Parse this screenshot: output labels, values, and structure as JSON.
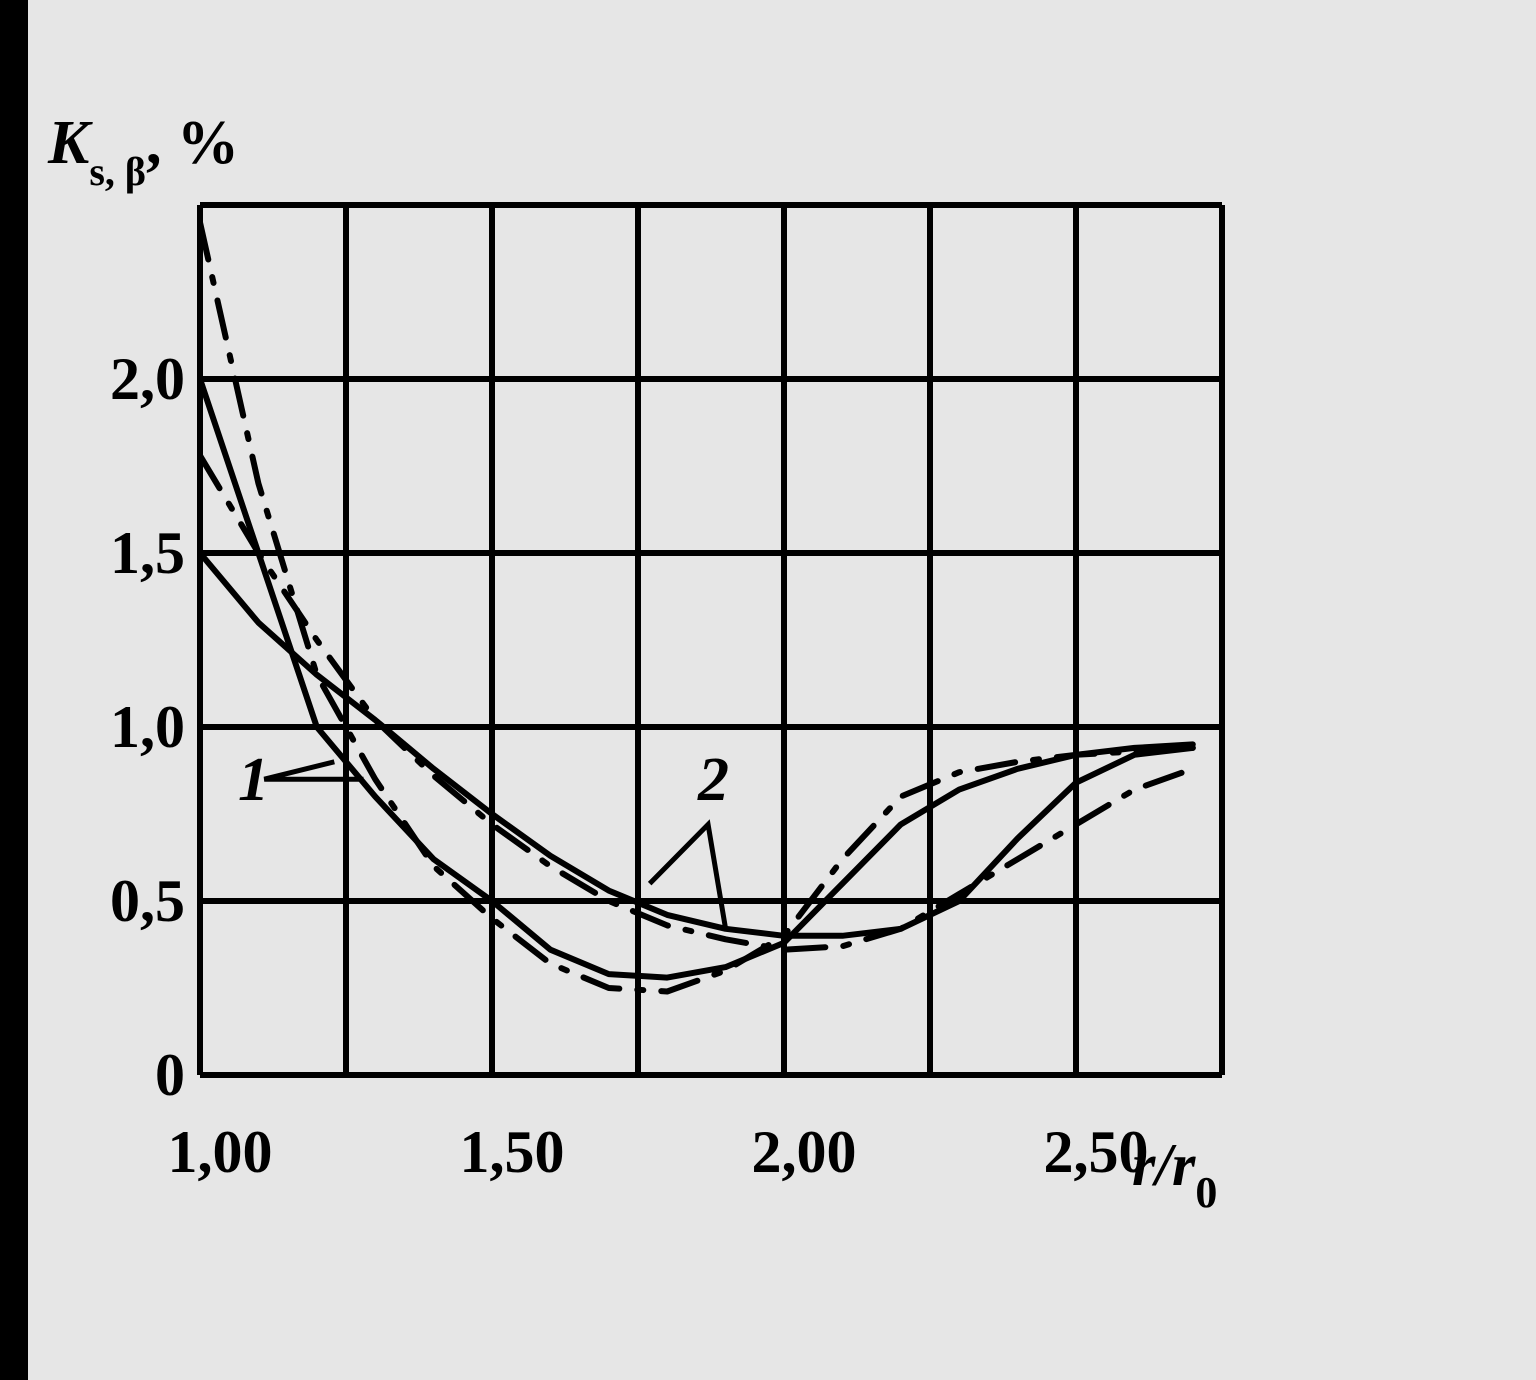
{
  "chart_data": {
    "type": "line",
    "title": "",
    "xlabel": "r/r0",
    "xlabel_main": "r/r",
    "xlabel_sub": "0",
    "ylabel": "Ks, β, %",
    "ylabel_main": "K",
    "ylabel_sub": "s, β",
    "ylabel_rest": ", %",
    "xlim": [
      1.0,
      2.75
    ],
    "ylim": [
      0,
      2.5
    ],
    "grid": true,
    "x_ticks": [
      {
        "value": 1.0,
        "label": "1,00"
      },
      {
        "value": 1.5,
        "label": "1,50"
      },
      {
        "value": 2.0,
        "label": "2,00"
      },
      {
        "value": 2.5,
        "label": "2,50"
      }
    ],
    "y_ticks": [
      {
        "value": 0,
        "label": "0"
      },
      {
        "value": 0.5,
        "label": "0,5"
      },
      {
        "value": 1.0,
        "label": "1,0"
      },
      {
        "value": 1.5,
        "label": "1,5"
      },
      {
        "value": 2.0,
        "label": "2,0"
      }
    ],
    "annotations": [
      {
        "text": "1",
        "x": 1.11,
        "y": 0.85
      },
      {
        "text": "2",
        "x": 1.87,
        "y": 0.84
      }
    ],
    "series": [
      {
        "style": "solid",
        "x": [
          1.0,
          1.1,
          1.2,
          1.3,
          1.4,
          1.5,
          1.6,
          1.7,
          1.8,
          1.9,
          2.0,
          2.1,
          2.2,
          2.3,
          2.4,
          2.5,
          2.6,
          2.7
        ],
        "y": [
          2.0,
          1.5,
          1.0,
          0.8,
          0.62,
          0.5,
          0.36,
          0.29,
          0.28,
          0.31,
          0.38,
          0.55,
          0.72,
          0.82,
          0.88,
          0.92,
          0.94,
          0.95
        ]
      },
      {
        "style": "dash-dot",
        "x": [
          1.0,
          1.1,
          1.2,
          1.3,
          1.4,
          1.5,
          1.6,
          1.7,
          1.8,
          1.9,
          2.0,
          2.1,
          2.2,
          2.3,
          2.4,
          2.5,
          2.6,
          2.7
        ],
        "y": [
          2.45,
          1.7,
          1.15,
          0.85,
          0.6,
          0.45,
          0.32,
          0.25,
          0.24,
          0.3,
          0.4,
          0.62,
          0.8,
          0.87,
          0.9,
          0.92,
          0.93,
          0.94
        ]
      },
      {
        "style": "solid",
        "x": [
          1.0,
          1.1,
          1.2,
          1.3,
          1.4,
          1.5,
          1.6,
          1.7,
          1.8,
          1.9,
          2.0,
          2.1,
          2.2,
          2.3,
          2.4,
          2.5,
          2.6,
          2.7
        ],
        "y": [
          1.5,
          1.3,
          1.15,
          1.02,
          0.88,
          0.75,
          0.63,
          0.53,
          0.46,
          0.42,
          0.4,
          0.4,
          0.42,
          0.5,
          0.68,
          0.84,
          0.92,
          0.94
        ]
      },
      {
        "style": "dash-dot",
        "x": [
          1.0,
          1.1,
          1.2,
          1.3,
          1.4,
          1.5,
          1.6,
          1.7,
          1.8,
          1.9,
          2.0,
          2.1,
          2.2,
          2.3,
          2.4,
          2.5,
          2.6,
          2.7
        ],
        "y": [
          1.78,
          1.5,
          1.25,
          1.02,
          0.86,
          0.72,
          0.6,
          0.5,
          0.43,
          0.39,
          0.36,
          0.37,
          0.42,
          0.52,
          0.62,
          0.72,
          0.82,
          0.88
        ]
      }
    ]
  }
}
